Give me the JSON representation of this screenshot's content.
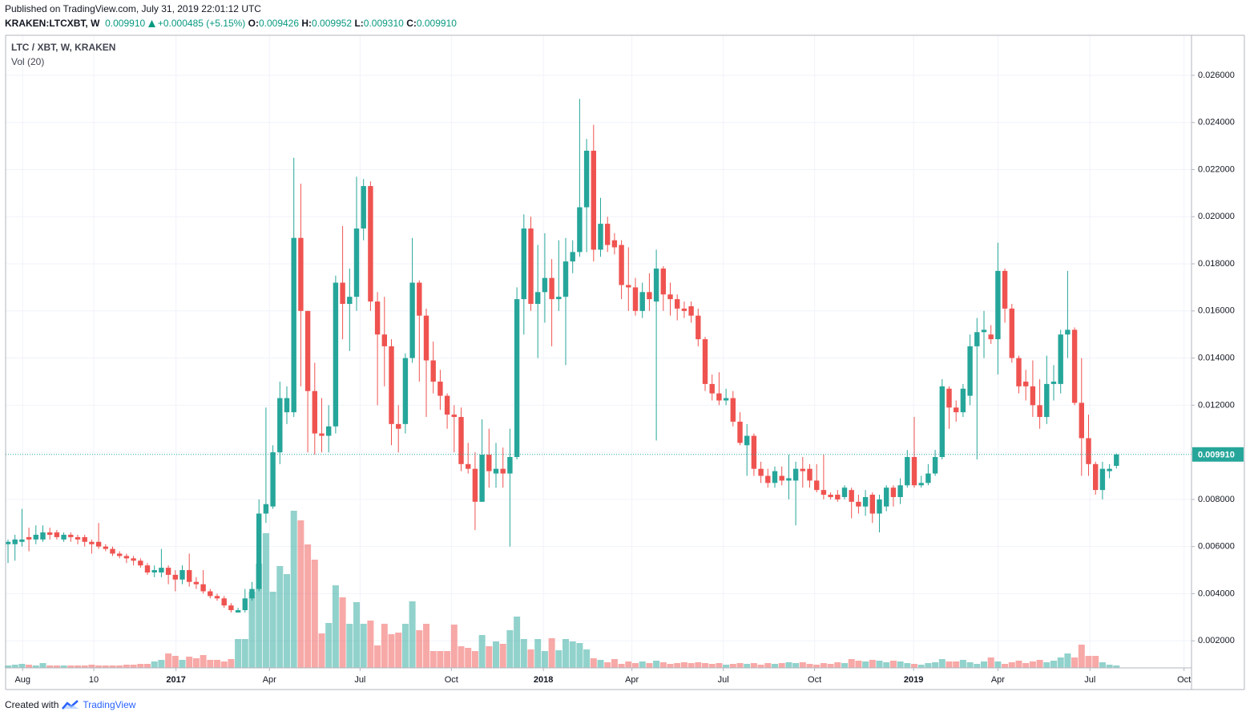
{
  "header": {
    "published": "Published on TradingView.com, July 31, 2019 22:01:12 UTC",
    "symbol": "KRAKEN:LTCXBT, W",
    "price": "0.009910",
    "change": "+0.000485 (+5.15%)",
    "ohlc": [
      {
        "key": "O:",
        "value": "0.009426"
      },
      {
        "key": "H:",
        "value": "0.009952"
      },
      {
        "key": "L:",
        "value": "0.009310"
      },
      {
        "key": "C:",
        "value": "0.009910"
      }
    ]
  },
  "footer": {
    "created": "Created with",
    "brand": "TradingView"
  },
  "chart_data": {
    "type": "candlestick",
    "title": "LTC / XBT, W, KRAKEN",
    "volume_label": "Vol (20)",
    "up_color": "#26a69a",
    "down_color": "#ef5350",
    "grid": true,
    "ylim": [
      0.00085,
      0.0277
    ],
    "yticks": [
      {
        "value": 0.002,
        "label": "0.002000"
      },
      {
        "value": 0.004,
        "label": "0.004000"
      },
      {
        "value": 0.006,
        "label": "0.006000"
      },
      {
        "value": 0.008,
        "label": "0.008000"
      },
      {
        "value": 0.01,
        "label": "0.010000"
      },
      {
        "value": 0.012,
        "label": "0.012000"
      },
      {
        "value": 0.014,
        "label": "0.014000"
      },
      {
        "value": 0.016,
        "label": "0.016000"
      },
      {
        "value": 0.018,
        "label": "0.018000"
      },
      {
        "value": 0.02,
        "label": "0.020000"
      },
      {
        "value": 0.022,
        "label": "0.022000"
      },
      {
        "value": 0.024,
        "label": "0.024000"
      },
      {
        "value": 0.026,
        "label": "0.026000"
      }
    ],
    "xticks": [
      {
        "value": 2.1,
        "label": "Aug"
      },
      {
        "value": 12.3,
        "label": "10"
      },
      {
        "value": 24.1,
        "label": "2017"
      },
      {
        "value": 37.5,
        "label": "Apr"
      },
      {
        "value": 50.5,
        "label": "Jul"
      },
      {
        "value": 63.6,
        "label": "Oct"
      },
      {
        "value": 76.8,
        "label": "2018"
      },
      {
        "value": 89.5,
        "label": "Apr"
      },
      {
        "value": 102.6,
        "label": "Jul"
      },
      {
        "value": 115.7,
        "label": "Oct"
      },
      {
        "value": 129.9,
        "label": "2019"
      },
      {
        "value": 142,
        "label": "Apr"
      },
      {
        "value": 155.2,
        "label": "Jul"
      },
      {
        "value": 168.7,
        "label": "Oct"
      }
    ],
    "last_price": {
      "value": 0.00991,
      "label": "0.009910"
    },
    "open": [
      0.0061,
      0.0061,
      0.0062,
      0.0064,
      0.0063,
      0.0063,
      0.0066,
      0.0066,
      0.0063,
      0.0065,
      0.0064,
      0.0064,
      0.0062,
      0.0062,
      0.006,
      0.0059,
      0.0057,
      0.0056,
      0.0055,
      0.0054,
      0.0052,
      0.0049,
      0.0049,
      0.0051,
      0.0048,
      0.0046,
      0.005,
      0.0045,
      0.0044,
      0.0041,
      0.0039,
      0.0038,
      0.0035,
      0.0032,
      0.0033,
      0.0038,
      0.0042,
      0.0074,
      0.0077,
      0.01,
      0.0117,
      0.0117,
      0.0191,
      0.016,
      0.0126,
      0.0108,
      0.0107,
      0.0111,
      0.0172,
      0.0163,
      0.0166,
      0.0195,
      0.0213,
      0.0164,
      0.015,
      0.0145,
      0.0112,
      0.0112,
      0.014,
      0.0172,
      0.0158,
      0.0139,
      0.013,
      0.0124,
      0.0116,
      0.0115,
      0.0095,
      0.0093,
      0.0079,
      0.0099,
      0.0091,
      0.0093,
      0.0091,
      0.0098,
      0.0165,
      0.0195,
      0.0163,
      0.0168,
      0.0174,
      0.0165,
      0.0166,
      0.0181,
      0.0185,
      0.0204,
      0.0228,
      0.0186,
      0.0197,
      0.019,
      0.0188,
      0.0171,
      0.017,
      0.016,
      0.0168,
      0.0164,
      0.0178,
      0.0167,
      0.0165,
      0.0161,
      0.0162,
      0.0158,
      0.0148,
      0.0129,
      0.0125,
      0.0122,
      0.0123,
      0.0113,
      0.0103,
      0.0107,
      0.0093,
      0.009,
      0.0087,
      0.009,
      0.0088,
      0.0088,
      0.0093,
      0.0093,
      0.0088,
      0.0084,
      0.0082,
      0.0082,
      0.0081,
      0.0084,
      0.0079,
      0.0077,
      0.0082,
      0.0074,
      0.0077,
      0.0085,
      0.0081,
      0.0086,
      0.0098,
      0.0086,
      0.0087,
      0.0091,
      0.0098,
      0.0127,
      0.0119,
      0.0117,
      0.0124,
      0.0145,
      0.0151,
      0.015,
      0.0148,
      0.0177,
      0.0161,
      0.014,
      0.013,
      0.0128,
      0.012,
      0.0115,
      0.0129,
      0.0129,
      0.015,
      0.0152,
      0.0121,
      0.0106,
      0.0095,
      0.0084,
      0.0092,
      0.009426
    ],
    "high": [
      0.0063,
      0.0065,
      0.0076,
      0.0068,
      0.0069,
      0.0069,
      0.0068,
      0.0067,
      0.0066,
      0.0066,
      0.0065,
      0.0065,
      0.0063,
      0.007,
      0.0061,
      0.006,
      0.0058,
      0.0057,
      0.0056,
      0.0055,
      0.0053,
      0.0052,
      0.0059,
      0.0052,
      0.005,
      0.0052,
      0.0057,
      0.0047,
      0.005,
      0.0042,
      0.004,
      0.0039,
      0.0036,
      0.0034,
      0.0042,
      0.0045,
      0.008,
      0.0119,
      0.0103,
      0.013,
      0.0128,
      0.0225,
      0.0214,
      0.016,
      0.0138,
      0.0123,
      0.012,
      0.0175,
      0.0196,
      0.0178,
      0.0217,
      0.0216,
      0.0215,
      0.0168,
      0.0166,
      0.0148,
      0.012,
      0.0142,
      0.0191,
      0.0173,
      0.0161,
      0.0147,
      0.0135,
      0.0125,
      0.012,
      0.0119,
      0.0104,
      0.01,
      0.0114,
      0.011,
      0.0104,
      0.0102,
      0.011,
      0.017,
      0.0201,
      0.02,
      0.0188,
      0.0193,
      0.0182,
      0.019,
      0.0191,
      0.019,
      0.025,
      0.0233,
      0.0239,
      0.0208,
      0.02,
      0.0193,
      0.019,
      0.0187,
      0.0174,
      0.0172,
      0.0176,
      0.0186,
      0.0179,
      0.0172,
      0.0167,
      0.0164,
      0.0164,
      0.0161,
      0.0149,
      0.0133,
      0.0134,
      0.0127,
      0.0126,
      0.0117,
      0.0112,
      0.0108,
      0.0096,
      0.0093,
      0.0094,
      0.0094,
      0.0099,
      0.0096,
      0.0098,
      0.0095,
      0.0095,
      0.0099,
      0.0083,
      0.0084,
      0.0086,
      0.0085,
      0.0082,
      0.0084,
      0.0083,
      0.0082,
      0.0086,
      0.0086,
      0.0089,
      0.0101,
      0.0115,
      0.009,
      0.0095,
      0.0101,
      0.0131,
      0.0128,
      0.0122,
      0.0129,
      0.015,
      0.0157,
      0.016,
      0.0154,
      0.0189,
      0.0178,
      0.0163,
      0.0141,
      0.0135,
      0.0139,
      0.0131,
      0.0141,
      0.0137,
      0.0152,
      0.0177,
      0.0153,
      0.014,
      0.0116,
      0.0096,
      0.0096,
      0.0095,
      0.009952
    ],
    "low": [
      0.0053,
      0.0054,
      0.006,
      0.0058,
      0.0061,
      0.0062,
      0.0063,
      0.0063,
      0.0062,
      0.0062,
      0.0061,
      0.006,
      0.0057,
      0.0059,
      0.0058,
      0.0056,
      0.0055,
      0.0053,
      0.0052,
      0.0051,
      0.0048,
      0.0047,
      0.0047,
      0.0044,
      0.0041,
      0.0044,
      0.0043,
      0.0042,
      0.004,
      0.0038,
      0.0037,
      0.0034,
      0.0032,
      0.0032,
      0.0032,
      0.0037,
      0.0041,
      0.007,
      0.0076,
      0.0095,
      0.0112,
      0.0115,
      0.0128,
      0.01,
      0.0099,
      0.01,
      0.01,
      0.0108,
      0.0148,
      0.0143,
      0.016,
      0.019,
      0.016,
      0.012,
      0.0128,
      0.0103,
      0.01,
      0.0108,
      0.0138,
      0.013,
      0.0115,
      0.0125,
      0.0118,
      0.011,
      0.01,
      0.0092,
      0.0091,
      0.0067,
      0.0079,
      0.0085,
      0.0085,
      0.0085,
      0.006,
      0.0097,
      0.015,
      0.016,
      0.014,
      0.0155,
      0.0145,
      0.016,
      0.0137,
      0.0176,
      0.0183,
      0.0185,
      0.0181,
      0.0183,
      0.0185,
      0.0184,
      0.0165,
      0.016,
      0.0158,
      0.0157,
      0.016,
      0.0105,
      0.016,
      0.0158,
      0.0156,
      0.0157,
      0.0155,
      0.0145,
      0.0126,
      0.0122,
      0.012,
      0.012,
      0.0111,
      0.0103,
      0.009,
      0.009,
      0.0087,
      0.0085,
      0.0085,
      0.0086,
      0.008,
      0.0069,
      0.0085,
      0.0085,
      0.0083,
      0.008,
      0.008,
      0.0079,
      0.008,
      0.0072,
      0.0074,
      0.0073,
      0.007,
      0.0066,
      0.0075,
      0.0077,
      0.0078,
      0.0085,
      0.0085,
      0.0085,
      0.0086,
      0.009,
      0.0097,
      0.011,
      0.0113,
      0.0115,
      0.012,
      0.0097,
      0.014,
      0.0146,
      0.0133,
      0.0155,
      0.0138,
      0.0125,
      0.0122,
      0.0115,
      0.011,
      0.0112,
      0.0122,
      0.0125,
      0.014,
      0.012,
      0.009,
      0.009,
      0.0082,
      0.008,
      0.0089,
      0.00931
    ],
    "close": [
      0.0062,
      0.0063,
      0.0063,
      0.0063,
      0.0065,
      0.0066,
      0.0065,
      0.0064,
      0.0065,
      0.0064,
      0.0063,
      0.0062,
      0.0061,
      0.006,
      0.0059,
      0.0057,
      0.0056,
      0.0055,
      0.0054,
      0.0052,
      0.0049,
      0.005,
      0.0051,
      0.0048,
      0.0046,
      0.005,
      0.0045,
      0.0044,
      0.0041,
      0.0039,
      0.0038,
      0.0035,
      0.0033,
      0.0033,
      0.0038,
      0.0042,
      0.0074,
      0.0078,
      0.01,
      0.0123,
      0.0123,
      0.0191,
      0.016,
      0.0126,
      0.0108,
      0.0107,
      0.0111,
      0.0172,
      0.0163,
      0.0166,
      0.0195,
      0.0213,
      0.0164,
      0.015,
      0.0145,
      0.0112,
      0.011,
      0.014,
      0.0172,
      0.0158,
      0.0139,
      0.013,
      0.0124,
      0.0116,
      0.0115,
      0.0095,
      0.0093,
      0.0079,
      0.0099,
      0.0092,
      0.0093,
      0.0091,
      0.0098,
      0.0165,
      0.0195,
      0.0163,
      0.0168,
      0.0174,
      0.0165,
      0.0166,
      0.0181,
      0.0185,
      0.0204,
      0.0228,
      0.0186,
      0.0197,
      0.0188,
      0.0187,
      0.0171,
      0.017,
      0.016,
      0.0168,
      0.0165,
      0.0178,
      0.0167,
      0.0165,
      0.0161,
      0.016,
      0.0158,
      0.0148,
      0.0129,
      0.0125,
      0.0122,
      0.0123,
      0.0113,
      0.0104,
      0.0107,
      0.0093,
      0.009,
      0.0087,
      0.0092,
      0.0088,
      0.0089,
      0.0093,
      0.0092,
      0.0088,
      0.0084,
      0.0082,
      0.0081,
      0.008,
      0.0085,
      0.0079,
      0.0077,
      0.0081,
      0.0074,
      0.008,
      0.0085,
      0.0081,
      0.0086,
      0.0098,
      0.0086,
      0.0087,
      0.0091,
      0.0098,
      0.0128,
      0.0119,
      0.0117,
      0.0127,
      0.0145,
      0.0151,
      0.0152,
      0.0148,
      0.0177,
      0.0161,
      0.014,
      0.0128,
      0.0128,
      0.012,
      0.0115,
      0.0129,
      0.013,
      0.015,
      0.0152,
      0.0121,
      0.0106,
      0.0095,
      0.0084,
      0.0093,
      0.0093,
      0.00991
    ],
    "volume": [
      3,
      4,
      5,
      4,
      3,
      6,
      3,
      3,
      3,
      3,
      3,
      3,
      4,
      3,
      3,
      3,
      3,
      4,
      4,
      5,
      5,
      8,
      10,
      18,
      15,
      10,
      14,
      12,
      16,
      10,
      10,
      8,
      11,
      36,
      36,
      95,
      130,
      168,
      95,
      127,
      117,
      196,
      184,
      154,
      135,
      43,
      56,
      103,
      88,
      55,
      82,
      55,
      59,
      28,
      55,
      42,
      44,
      55,
      83,
      47,
      55,
      21,
      21,
      21,
      54,
      27,
      25,
      21,
      41,
      27,
      33,
      30,
      47,
      64,
      36,
      23,
      36,
      21,
      37,
      22,
      36,
      33,
      31,
      23,
      12,
      10,
      7,
      11,
      5,
      8,
      6,
      8,
      6,
      9,
      7,
      5,
      6,
      7,
      6,
      7,
      6,
      5,
      6,
      4,
      5,
      6,
      5,
      6,
      4,
      6,
      5,
      6,
      7,
      6,
      7,
      5,
      4,
      6,
      5,
      7,
      6,
      11,
      9,
      8,
      10,
      9,
      7,
      9,
      8,
      6,
      5,
      4,
      6,
      7,
      11,
      8,
      8,
      10,
      7,
      5,
      8,
      13,
      8,
      5,
      7,
      9,
      6,
      8,
      10,
      7,
      9,
      13,
      18,
      13,
      29,
      15,
      15,
      7,
      4,
      3
    ]
  }
}
